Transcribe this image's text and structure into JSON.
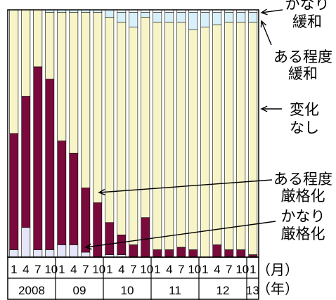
{
  "chart_data": {
    "type": "bar",
    "stacked": true,
    "normalized": true,
    "ylim": [
      0,
      100
    ],
    "grid": false,
    "legend_placement": "right, inline labels with arrows",
    "categories": [
      "2008Q1",
      "2008Q2",
      "2008Q3",
      "2008Q4",
      "2009Q1",
      "2009Q2",
      "2009Q3",
      "2009Q4",
      "2010Q1",
      "2010Q2",
      "2010Q3",
      "2010Q4",
      "2011Q1",
      "2011Q2",
      "2011Q3",
      "2011Q4",
      "2012Q1",
      "2012Q2",
      "2012Q3",
      "2012Q4",
      "2013Q1"
    ],
    "x_tick_labels": [
      "1",
      "4",
      "7",
      "10",
      "1",
      "4",
      "7",
      "10",
      "1",
      "4",
      "7",
      "10",
      "1",
      "4",
      "7",
      "10",
      "1",
      "4",
      "7",
      "10",
      "1"
    ],
    "year_labels": [
      {
        "label": "2008",
        "start": 0,
        "end": 3
      },
      {
        "label": "09",
        "start": 4,
        "end": 7
      },
      {
        "label": "10",
        "start": 8,
        "end": 11
      },
      {
        "label": "11",
        "start": 12,
        "end": 15
      },
      {
        "label": "12",
        "start": 16,
        "end": 19
      },
      {
        "label": "13",
        "start": 20,
        "end": 20
      }
    ],
    "x_unit_label": "（月）",
    "year_unit_label": "（年）",
    "series": [
      {
        "name": "かなり厳格化",
        "color": "#e6e6fa",
        "values": [
          3,
          12,
          3,
          3,
          5,
          5,
          2,
          0,
          1,
          1,
          0,
          0,
          0,
          0,
          0,
          0,
          0,
          0,
          0,
          0,
          0
        ]
      },
      {
        "name": "ある程度厳格化",
        "color": "#7a0a3b",
        "values": [
          47,
          53,
          74,
          69,
          42,
          37,
          26,
          22,
          13,
          8,
          5,
          16,
          3,
          3,
          4,
          3,
          0,
          5,
          3,
          3,
          1
        ]
      },
      {
        "name": "変化なし",
        "color": "#f7f5c8",
        "values": [
          50,
          35,
          23,
          27,
          52,
          57,
          71,
          77,
          83,
          86,
          88,
          81,
          92,
          92,
          91,
          89,
          93,
          89,
          92,
          92,
          94
        ]
      },
      {
        "name": "ある程度緩和",
        "color": "#d8f0fa",
        "values": [
          0,
          0,
          0,
          1,
          1,
          1,
          1,
          1,
          3,
          4,
          6,
          2,
          4,
          4,
          4,
          7,
          6,
          5,
          4,
          4,
          4
        ]
      },
      {
        "name": "かなり緩和",
        "color": "#ffffff",
        "values": [
          0,
          0,
          0,
          0,
          0,
          0,
          0,
          0,
          0,
          1,
          1,
          1,
          1,
          1,
          1,
          1,
          1,
          1,
          1,
          1,
          1
        ]
      }
    ],
    "series_labels": [
      {
        "series": "かなり緩和",
        "lines": [
          "かなり",
          "緩和"
        ]
      },
      {
        "series": "ある程度緩和",
        "lines": [
          "ある程度",
          "緩和"
        ]
      },
      {
        "series": "変化なし",
        "lines": [
          "変化",
          "なし"
        ]
      },
      {
        "series": "ある程度厳格化",
        "lines": [
          "ある程度",
          "厳格化"
        ]
      },
      {
        "series": "かなり厳格化",
        "lines": [
          "かなり",
          "厳格化"
        ]
      }
    ]
  }
}
